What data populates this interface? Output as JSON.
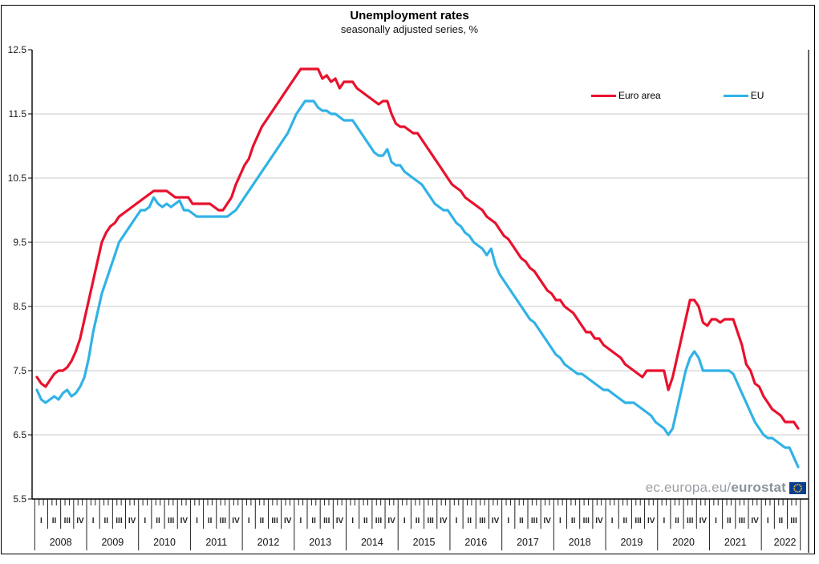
{
  "title": "Unemployment rates",
  "subtitle": "seasonally adjusted series, %",
  "watermark": {
    "prefix": "ec.europa.eu/",
    "bold": "eurostat"
  },
  "colors": {
    "euro_area": "#e8112d",
    "eu": "#31b2e6",
    "gridline": "#c9c9c9",
    "axis": "#000000",
    "flag_blue": "#0a3d91",
    "flag_stars": "#ffcc00"
  },
  "chart_data": {
    "type": "line",
    "title": "Unemployment rates",
    "subtitle": "seasonally adjusted series, %",
    "frequency": "monthly",
    "x_start": "2008-01",
    "x_end": "2022-09",
    "ylim": [
      5.5,
      12.5
    ],
    "y_ticks": [
      5.5,
      6.5,
      7.5,
      8.5,
      9.5,
      10.5,
      11.5,
      12.5
    ],
    "grid": true,
    "legend_position": "top-right-inside",
    "x_axis": {
      "years": [
        {
          "label": "2008",
          "quarters": [
            "I",
            "II",
            "III",
            "IV"
          ]
        },
        {
          "label": "2009",
          "quarters": [
            "I",
            "II",
            "III",
            "IV"
          ]
        },
        {
          "label": "2010",
          "quarters": [
            "I",
            "II",
            "III",
            "IV"
          ]
        },
        {
          "label": "2011",
          "quarters": [
            "I",
            "II",
            "III",
            "IV"
          ]
        },
        {
          "label": "2012",
          "quarters": [
            "I",
            "II",
            "III",
            "IV"
          ]
        },
        {
          "label": "2013",
          "quarters": [
            "I",
            "II",
            "III",
            "IV"
          ]
        },
        {
          "label": "2014",
          "quarters": [
            "I",
            "II",
            "III",
            "IV"
          ]
        },
        {
          "label": "2015",
          "quarters": [
            "I",
            "II",
            "III",
            "IV"
          ]
        },
        {
          "label": "2016",
          "quarters": [
            "I",
            "II",
            "III",
            "IV"
          ]
        },
        {
          "label": "2017",
          "quarters": [
            "I",
            "II",
            "III",
            "IV"
          ]
        },
        {
          "label": "2018",
          "quarters": [
            "I",
            "II",
            "III",
            "IV"
          ]
        },
        {
          "label": "2019",
          "quarters": [
            "I",
            "II",
            "III",
            "IV"
          ]
        },
        {
          "label": "2020",
          "quarters": [
            "I",
            "II",
            "III",
            "IV"
          ]
        },
        {
          "label": "2021",
          "quarters": [
            "I",
            "II",
            "III",
            "IV"
          ]
        },
        {
          "label": "2022",
          "quarters": [
            "I",
            "II",
            "III"
          ]
        }
      ]
    },
    "series": [
      {
        "name": "Euro area",
        "color": "#e8112d",
        "values": [
          7.4,
          7.3,
          7.25,
          7.35,
          7.45,
          7.5,
          7.5,
          7.55,
          7.65,
          7.8,
          8.0,
          8.3,
          8.6,
          8.9,
          9.2,
          9.5,
          9.65,
          9.75,
          9.8,
          9.9,
          9.95,
          10.0,
          10.05,
          10.1,
          10.15,
          10.2,
          10.25,
          10.3,
          10.3,
          10.3,
          10.3,
          10.25,
          10.2,
          10.2,
          10.2,
          10.2,
          10.1,
          10.1,
          10.1,
          10.1,
          10.1,
          10.05,
          10.0,
          10.0,
          10.1,
          10.2,
          10.4,
          10.55,
          10.7,
          10.8,
          11.0,
          11.15,
          11.3,
          11.4,
          11.5,
          11.6,
          11.7,
          11.8,
          11.9,
          12.0,
          12.1,
          12.2,
          12.2,
          12.2,
          12.2,
          12.2,
          12.05,
          12.1,
          12.0,
          12.05,
          11.9,
          12.0,
          12.0,
          12.0,
          11.9,
          11.85,
          11.8,
          11.75,
          11.7,
          11.65,
          11.7,
          11.7,
          11.5,
          11.35,
          11.3,
          11.3,
          11.25,
          11.2,
          11.2,
          11.1,
          11.0,
          10.9,
          10.8,
          10.7,
          10.6,
          10.5,
          10.4,
          10.35,
          10.3,
          10.2,
          10.15,
          10.1,
          10.05,
          10.0,
          9.9,
          9.85,
          9.8,
          9.7,
          9.6,
          9.55,
          9.45,
          9.35,
          9.25,
          9.2,
          9.1,
          9.05,
          8.95,
          8.85,
          8.75,
          8.7,
          8.6,
          8.6,
          8.5,
          8.45,
          8.4,
          8.3,
          8.2,
          8.1,
          8.1,
          8.0,
          8.0,
          7.9,
          7.85,
          7.8,
          7.75,
          7.7,
          7.6,
          7.55,
          7.5,
          7.45,
          7.4,
          7.5,
          7.5,
          7.5,
          7.5,
          7.5,
          7.2,
          7.4,
          7.7,
          8.0,
          8.3,
          8.6,
          8.6,
          8.5,
          8.25,
          8.2,
          8.3,
          8.3,
          8.25,
          8.3,
          8.3,
          8.3,
          8.1,
          7.9,
          7.6,
          7.5,
          7.3,
          7.25,
          7.1,
          7.0,
          6.9,
          6.85,
          6.8,
          6.7,
          6.7,
          6.7,
          6.6
        ]
      },
      {
        "name": "EU",
        "color": "#31b2e6",
        "values": [
          7.2,
          7.05,
          7.0,
          7.05,
          7.1,
          7.05,
          7.15,
          7.2,
          7.1,
          7.15,
          7.25,
          7.4,
          7.7,
          8.1,
          8.4,
          8.7,
          8.9,
          9.1,
          9.3,
          9.5,
          9.6,
          9.7,
          9.8,
          9.9,
          10.0,
          10.0,
          10.05,
          10.2,
          10.1,
          10.05,
          10.1,
          10.05,
          10.1,
          10.15,
          10.0,
          10.0,
          9.95,
          9.9,
          9.9,
          9.9,
          9.9,
          9.9,
          9.9,
          9.9,
          9.9,
          9.95,
          10.0,
          10.1,
          10.2,
          10.3,
          10.4,
          10.5,
          10.6,
          10.7,
          10.8,
          10.9,
          11.0,
          11.1,
          11.2,
          11.35,
          11.5,
          11.6,
          11.7,
          11.7,
          11.7,
          11.6,
          11.55,
          11.55,
          11.5,
          11.5,
          11.45,
          11.4,
          11.4,
          11.4,
          11.3,
          11.2,
          11.1,
          11.0,
          10.9,
          10.85,
          10.85,
          10.95,
          10.75,
          10.7,
          10.7,
          10.6,
          10.55,
          10.5,
          10.45,
          10.4,
          10.3,
          10.2,
          10.1,
          10.05,
          10.0,
          10.0,
          9.9,
          9.8,
          9.75,
          9.65,
          9.6,
          9.5,
          9.45,
          9.4,
          9.3,
          9.4,
          9.15,
          9.0,
          8.9,
          8.8,
          8.7,
          8.6,
          8.5,
          8.4,
          8.3,
          8.25,
          8.15,
          8.05,
          7.95,
          7.85,
          7.75,
          7.7,
          7.6,
          7.55,
          7.5,
          7.45,
          7.45,
          7.4,
          7.35,
          7.3,
          7.25,
          7.2,
          7.2,
          7.15,
          7.1,
          7.05,
          7.0,
          7.0,
          7.0,
          6.95,
          6.9,
          6.85,
          6.8,
          6.7,
          6.65,
          6.6,
          6.5,
          6.6,
          6.9,
          7.2,
          7.5,
          7.7,
          7.8,
          7.7,
          7.5,
          7.5,
          7.5,
          7.5,
          7.5,
          7.5,
          7.5,
          7.45,
          7.3,
          7.15,
          7.0,
          6.85,
          6.7,
          6.6,
          6.5,
          6.45,
          6.45,
          6.4,
          6.35,
          6.3,
          6.3,
          6.15,
          6.0
        ]
      }
    ]
  }
}
